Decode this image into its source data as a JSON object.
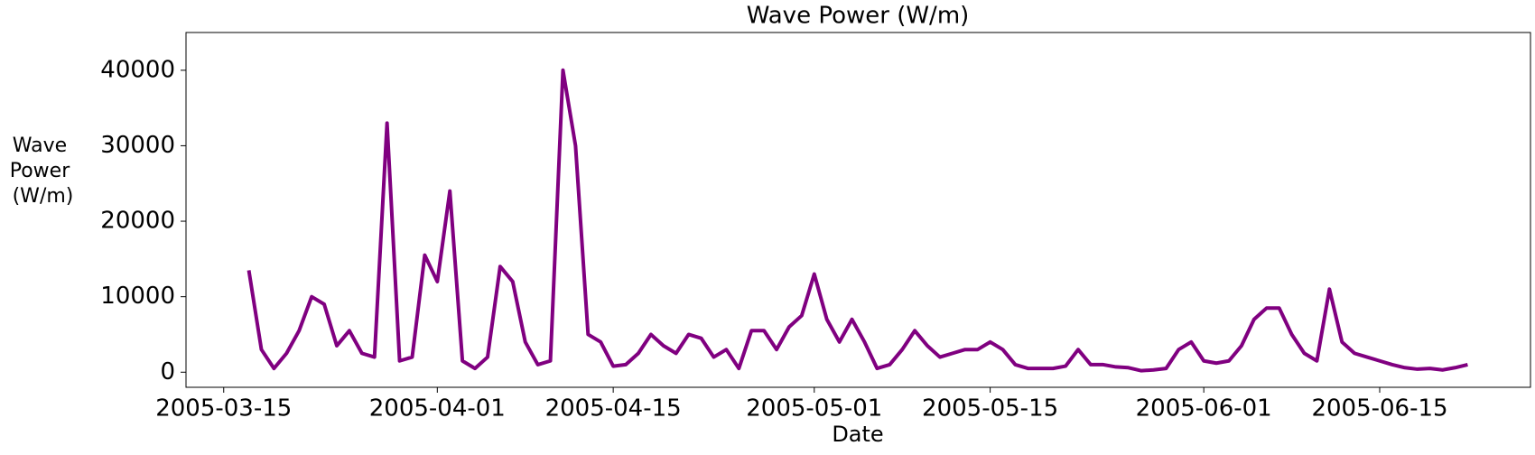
{
  "chart_data": {
    "type": "line",
    "title": "Wave Power (W/m)",
    "x_label": "Date",
    "y_label": "Wave\nPower\n (W/m)",
    "x": [
      "2005-03-17",
      "2005-03-18",
      "2005-03-19",
      "2005-03-20",
      "2005-03-21",
      "2005-03-22",
      "2005-03-23",
      "2005-03-24",
      "2005-03-25",
      "2005-03-26",
      "2005-03-27",
      "2005-03-28",
      "2005-03-29",
      "2005-03-30",
      "2005-03-31",
      "2005-04-01",
      "2005-04-02",
      "2005-04-03",
      "2005-04-04",
      "2005-04-05",
      "2005-04-06",
      "2005-04-07",
      "2005-04-08",
      "2005-04-09",
      "2005-04-10",
      "2005-04-11",
      "2005-04-12",
      "2005-04-13",
      "2005-04-14",
      "2005-04-15",
      "2005-04-16",
      "2005-04-17",
      "2005-04-18",
      "2005-04-19",
      "2005-04-20",
      "2005-04-21",
      "2005-04-22",
      "2005-04-23",
      "2005-04-24",
      "2005-04-25",
      "2005-04-26",
      "2005-04-27",
      "2005-04-28",
      "2005-04-29",
      "2005-04-30",
      "2005-05-01",
      "2005-05-02",
      "2005-05-03",
      "2005-05-04",
      "2005-05-05",
      "2005-05-06",
      "2005-05-07",
      "2005-05-08",
      "2005-05-09",
      "2005-05-10",
      "2005-05-11",
      "2005-05-12",
      "2005-05-13",
      "2005-05-14",
      "2005-05-15",
      "2005-05-16",
      "2005-05-17",
      "2005-05-18",
      "2005-05-19",
      "2005-05-20",
      "2005-05-21",
      "2005-05-22",
      "2005-05-23",
      "2005-05-24",
      "2005-05-25",
      "2005-05-26",
      "2005-05-27",
      "2005-05-28",
      "2005-05-29",
      "2005-05-30",
      "2005-05-31",
      "2005-06-01",
      "2005-06-02",
      "2005-06-03",
      "2005-06-04",
      "2005-06-05",
      "2005-06-06",
      "2005-06-07",
      "2005-06-08",
      "2005-06-09",
      "2005-06-10",
      "2005-06-11",
      "2005-06-12",
      "2005-06-13",
      "2005-06-14",
      "2005-06-15",
      "2005-06-16",
      "2005-06-17",
      "2005-06-18",
      "2005-06-19",
      "2005-06-20",
      "2005-06-21",
      "2005-06-22"
    ],
    "series": [
      {
        "name": "Wave Power",
        "color": "#800080",
        "values": [
          13500,
          3000,
          500,
          2500,
          5500,
          10000,
          9000,
          3500,
          5500,
          2500,
          2000,
          33000,
          1500,
          2000,
          15500,
          12000,
          24000,
          1500,
          500,
          2000,
          14000,
          12000,
          4000,
          1000,
          1500,
          40000,
          30000,
          5000,
          4000,
          800,
          1000,
          2500,
          5000,
          3500,
          2500,
          5000,
          4500,
          2000,
          3000,
          500,
          5500,
          5500,
          3000,
          6000,
          7500,
          13000,
          7000,
          4000,
          7000,
          4000,
          500,
          1000,
          3000,
          5500,
          3500,
          2000,
          2500,
          3000,
          3000,
          4000,
          3000,
          1000,
          500,
          500,
          500,
          800,
          3000,
          1000,
          1000,
          700,
          600,
          200,
          300,
          500,
          3000,
          4000,
          1500,
          1200,
          1500,
          3500,
          7000,
          8500,
          8500,
          5000,
          2500,
          1500,
          11000,
          4000,
          2500,
          2000,
          1500,
          1000,
          600,
          400,
          500,
          300,
          600,
          1000
        ]
      }
    ],
    "xlim": [
      "2005-03-12",
      "2005-06-27"
    ],
    "xticks": [
      "2005-03-15",
      "2005-04-01",
      "2005-04-15",
      "2005-05-01",
      "2005-05-15",
      "2005-06-01",
      "2005-06-15"
    ],
    "ylim": [
      -2000,
      45000
    ],
    "yticks": [
      0,
      10000,
      20000,
      30000,
      40000
    ]
  }
}
